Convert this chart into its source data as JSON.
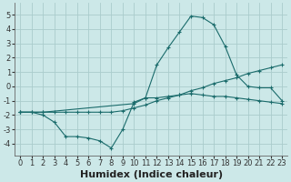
{
  "xlabel": "Humidex (Indice chaleur)",
  "bg_color": "#cce8e8",
  "grid_color": "#aacccc",
  "line_color": "#1a6b6b",
  "xlim": [
    -0.5,
    23.5
  ],
  "ylim": [
    -4.8,
    5.8
  ],
  "xticks": [
    0,
    1,
    2,
    3,
    4,
    5,
    6,
    7,
    8,
    9,
    10,
    11,
    12,
    13,
    14,
    15,
    16,
    17,
    18,
    19,
    20,
    21,
    22,
    23
  ],
  "yticks": [
    -4,
    -3,
    -2,
    -1,
    0,
    1,
    2,
    3,
    4,
    5
  ],
  "line1_x": [
    0,
    1,
    2,
    3,
    4,
    5,
    6,
    7,
    8,
    9,
    10,
    11,
    12,
    13,
    14,
    15,
    16,
    17,
    18,
    19,
    20,
    21,
    22,
    23
  ],
  "line1_y": [
    -1.8,
    -1.8,
    -2.0,
    -2.5,
    -3.5,
    -3.5,
    -3.6,
    -3.8,
    -4.3,
    -3.0,
    -1.1,
    -0.8,
    -0.8,
    -0.7,
    -0.6,
    -0.5,
    -0.6,
    -0.7,
    -0.7,
    -0.8,
    -0.9,
    -1.0,
    -1.1,
    -1.2
  ],
  "line2_x": [
    0,
    1,
    2,
    3,
    4,
    5,
    6,
    7,
    8,
    9,
    10,
    11,
    12,
    13,
    14,
    15,
    16,
    17,
    18,
    19,
    20,
    21,
    22,
    23
  ],
  "line2_y": [
    -1.8,
    -1.8,
    -1.8,
    -1.8,
    -1.8,
    -1.8,
    -1.8,
    -1.8,
    -1.8,
    -1.7,
    -1.5,
    -1.3,
    -1.0,
    -0.8,
    -0.6,
    -0.3,
    -0.1,
    0.2,
    0.4,
    0.6,
    0.9,
    1.1,
    1.3,
    1.5
  ],
  "line3_x": [
    0,
    2,
    10,
    11,
    12,
    13,
    14,
    15,
    16,
    17,
    18,
    19,
    20,
    21,
    22,
    23
  ],
  "line3_y": [
    -1.8,
    -1.8,
    -1.2,
    -0.8,
    1.5,
    2.7,
    3.8,
    4.9,
    4.8,
    4.3,
    2.8,
    0.8,
    0.0,
    -0.1,
    -0.1,
    -1.0
  ],
  "fontsize_xlabel": 8,
  "fontsize_tick": 6
}
